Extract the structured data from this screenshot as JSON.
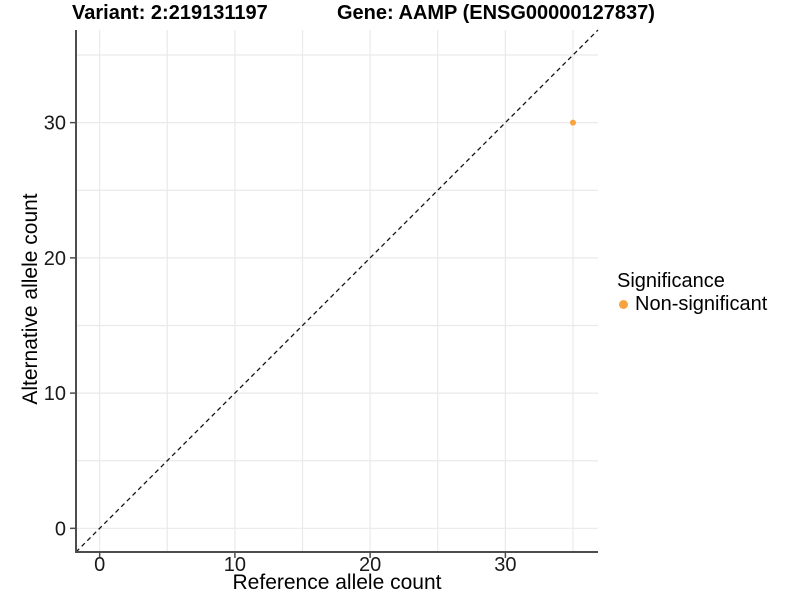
{
  "chart_data": {
    "type": "scatter",
    "titles": {
      "left": "Variant: 2:219131197",
      "right": "Gene: AAMP (ENSG00000127837)"
    },
    "xlabel": "Reference allele count",
    "ylabel": "Alternative allele count",
    "xlim": [
      -1.75,
      36.85
    ],
    "ylim": [
      -1.75,
      36.85
    ],
    "x_ticks": [
      0,
      10,
      20,
      30
    ],
    "y_ticks": [
      0,
      10,
      20,
      30
    ],
    "grid_values": [
      0,
      5,
      10,
      15,
      20,
      25,
      30,
      35
    ],
    "grid": "on, light gray lines every 5 units",
    "identity_line": {
      "equation": "y = x",
      "style": "dashed",
      "color": "#141414"
    },
    "series": [
      {
        "name": "Non-significant",
        "color": "#F9A240",
        "points": [
          {
            "x": 35,
            "y": 30
          }
        ]
      }
    ],
    "legend": {
      "title": "Significance",
      "position": "right",
      "items": [
        {
          "label": "Non-significant",
          "color": "#F9A240"
        }
      ]
    },
    "colors": {
      "axis_line": "#4D4D4D",
      "gridline": "#EAEAEA",
      "tick_label": "#1A1A1A",
      "point": "#F9A240"
    }
  }
}
